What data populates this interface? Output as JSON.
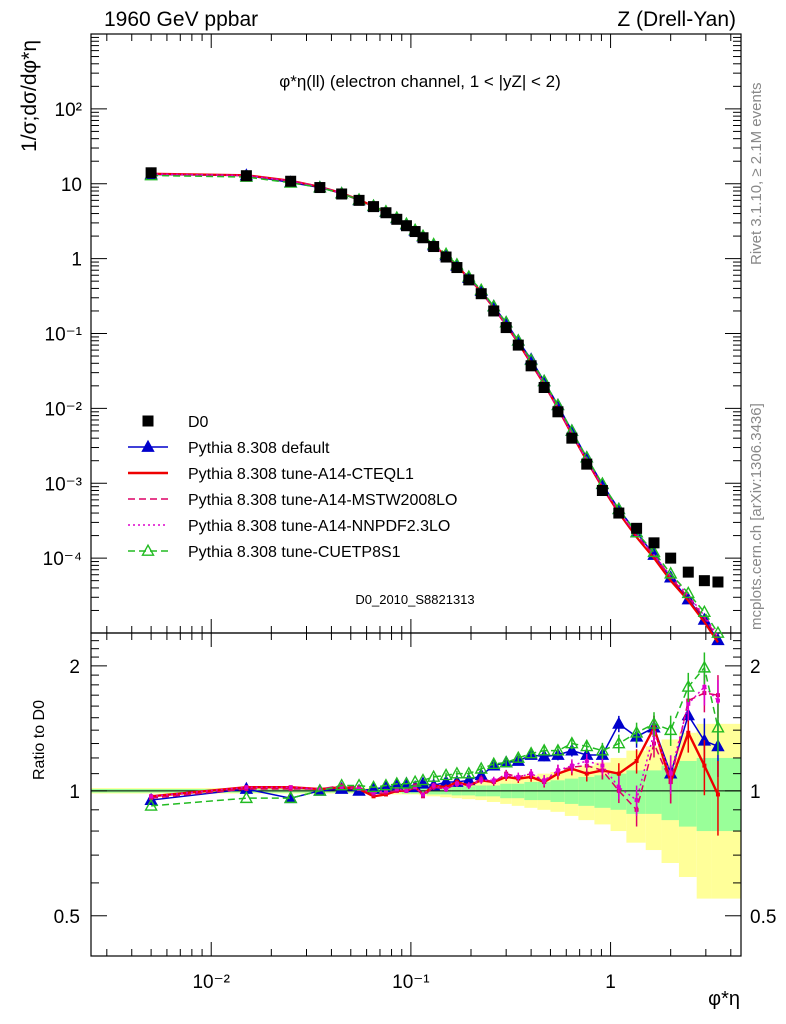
{
  "header": {
    "left": "1960 GeV ppbar",
    "right": "Z (Drell-Yan)"
  },
  "side_text": {
    "rivet": "Rivet 3.1.10, ≥ 2.1M events",
    "mcplots": "mcplots.cern.ch [arXiv:1306.3436]"
  },
  "chart_data": [
    {
      "type": "scatter",
      "title": "φ*η(ll) (electron channel, 1 < |yZ| < 2)",
      "ylabel": "1/σ;dσ/dφ*η",
      "xlabel": "φ*η",
      "x_scale": "log",
      "y_scale": "log",
      "xlim": [
        0.0025,
        4.5
      ],
      "ylim": [
        1e-05,
        1000
      ],
      "y_ticks": [
        "10⁻⁴",
        "10⁻³",
        "10⁻²",
        "10⁻¹",
        "1",
        "10",
        "10²"
      ],
      "watermark": "D0_2010_S8821313",
      "legend_position": "lower-left",
      "x": [
        0.005,
        0.015,
        0.025,
        0.035,
        0.045,
        0.055,
        0.065,
        0.075,
        0.085,
        0.095,
        0.105,
        0.115,
        0.13,
        0.15,
        0.17,
        0.195,
        0.225,
        0.26,
        0.3,
        0.345,
        0.4,
        0.465,
        0.545,
        0.64,
        0.76,
        0.91,
        1.1,
        1.35,
        1.65,
        2.0,
        2.45,
        2.95,
        3.45
      ],
      "series": [
        {
          "name": "D0",
          "color": "#000000",
          "marker": "square",
          "line": "none",
          "values": [
            14.0,
            12.8,
            10.8,
            8.9,
            7.3,
            6.0,
            4.95,
            4.1,
            3.35,
            2.75,
            2.3,
            1.9,
            1.45,
            1.05,
            0.76,
            0.52,
            0.34,
            0.2,
            0.12,
            0.07,
            0.037,
            0.019,
            0.009,
            0.004,
            0.0018,
            0.0008,
            0.0004,
            0.00025,
            0.00016,
            0.0001,
            6.5e-05,
            5e-05,
            4.8e-05
          ]
        },
        {
          "name": "Pythia 8.308 default",
          "color": "#0000cc",
          "marker": "triangle-filled",
          "line": "solid",
          "values": [
            13.3,
            12.9,
            10.4,
            8.9,
            7.4,
            6.0,
            5.0,
            4.2,
            3.45,
            2.85,
            2.35,
            1.97,
            1.5,
            1.1,
            0.8,
            0.55,
            0.37,
            0.23,
            0.14,
            0.08,
            0.045,
            0.023,
            0.011,
            0.005,
            0.0022,
            0.00097,
            0.00045,
            0.00022,
            0.00011,
            5.5e-05,
            2.8e-05,
            1.5e-05,
            8e-06
          ]
        },
        {
          "name": "Pythia 8.308 tune-A14-CTEQL1",
          "color": "#ee0000",
          "marker": "none",
          "line": "solid",
          "values": [
            13.6,
            13.0,
            11.0,
            9.1,
            7.5,
            6.1,
            5.0,
            4.15,
            3.4,
            2.8,
            2.35,
            1.95,
            1.5,
            1.1,
            0.8,
            0.55,
            0.36,
            0.22,
            0.13,
            0.075,
            0.04,
            0.021,
            0.01,
            0.0045,
            0.002,
            0.00088,
            0.0004,
            0.00019,
            0.0001,
            5e-05,
            2.7e-05,
            1.4e-05,
            7.5e-06
          ]
        },
        {
          "name": "Pythia 8.308 tune-A14-MSTW2008LO",
          "color": "#dd0066",
          "marker": "none",
          "line": "dashed",
          "values": [
            13.4,
            12.9,
            10.9,
            9.1,
            7.5,
            6.1,
            5.0,
            4.2,
            3.45,
            2.85,
            2.35,
            1.95,
            1.5,
            1.1,
            0.8,
            0.55,
            0.36,
            0.22,
            0.13,
            0.076,
            0.041,
            0.021,
            0.01,
            0.0046,
            0.002,
            0.0009,
            0.00041,
            0.0002,
            0.00011,
            5.5e-05,
            3e-05,
            1.6e-05,
            8.5e-06
          ]
        },
        {
          "name": "Pythia 8.308 tune-A14-NNPDF2.3LO",
          "color": "#dd00cc",
          "marker": "none",
          "line": "dotted",
          "values": [
            13.5,
            12.9,
            10.9,
            9.1,
            7.5,
            6.1,
            5.0,
            4.15,
            3.4,
            2.8,
            2.35,
            1.95,
            1.5,
            1.1,
            0.8,
            0.55,
            0.36,
            0.22,
            0.13,
            0.076,
            0.041,
            0.021,
            0.01,
            0.0046,
            0.002,
            0.00092,
            0.00042,
            0.00021,
            0.00011,
            5.8e-05,
            3.2e-05,
            1.7e-05,
            9e-06
          ]
        },
        {
          "name": "Pythia 8.308 tune-CUETP8S1",
          "color": "#22bb22",
          "marker": "triangle-open",
          "line": "dashed",
          "values": [
            12.9,
            12.3,
            10.3,
            8.9,
            7.4,
            6.1,
            5.05,
            4.25,
            3.5,
            2.9,
            2.4,
            2.0,
            1.55,
            1.15,
            0.83,
            0.57,
            0.38,
            0.23,
            0.14,
            0.08,
            0.044,
            0.023,
            0.011,
            0.005,
            0.0022,
            0.00098,
            0.00045,
            0.00022,
            0.00012,
            6.2e-05,
            3.4e-05,
            1.9e-05,
            1e-05
          ]
        }
      ]
    },
    {
      "type": "line",
      "ylabel": "Ratio to D0",
      "xlabel": "φ*η",
      "x_scale": "log",
      "xlim": [
        0.0025,
        4.5
      ],
      "ylim": [
        0.4,
        2.4
      ],
      "y_ticks": [
        0.5,
        1,
        2
      ],
      "x_ticks": [
        "10⁻²",
        "10⁻¹",
        "1"
      ],
      "x": [
        0.005,
        0.015,
        0.025,
        0.035,
        0.045,
        0.055,
        0.065,
        0.075,
        0.085,
        0.095,
        0.105,
        0.115,
        0.13,
        0.15,
        0.17,
        0.195,
        0.225,
        0.26,
        0.3,
        0.345,
        0.4,
        0.465,
        0.545,
        0.64,
        0.76,
        0.91,
        1.1,
        1.35,
        1.65,
        2.0,
        2.45,
        2.95,
        3.45
      ],
      "band_edges": [
        0.0025,
        0.01,
        0.02,
        0.03,
        0.04,
        0.05,
        0.06,
        0.07,
        0.08,
        0.09,
        0.1,
        0.11,
        0.12,
        0.14,
        0.16,
        0.18,
        0.21,
        0.24,
        0.28,
        0.32,
        0.37,
        0.43,
        0.5,
        0.59,
        0.69,
        0.83,
        1.0,
        1.2,
        1.5,
        1.8,
        2.2,
        2.7,
        3.2,
        4.5
      ],
      "band_inner": [
        0.01,
        0.01,
        0.01,
        0.01,
        0.01,
        0.01,
        0.01,
        0.01,
        0.01,
        0.015,
        0.015,
        0.015,
        0.02,
        0.02,
        0.025,
        0.025,
        0.03,
        0.03,
        0.04,
        0.04,
        0.05,
        0.05,
        0.06,
        0.07,
        0.08,
        0.09,
        0.1,
        0.12,
        0.12,
        0.15,
        0.18,
        0.2,
        0.2
      ],
      "band_outer": [
        0.015,
        0.015,
        0.015,
        0.015,
        0.015,
        0.015,
        0.015,
        0.015,
        0.02,
        0.02,
        0.02,
        0.025,
        0.03,
        0.035,
        0.04,
        0.045,
        0.05,
        0.06,
        0.07,
        0.08,
        0.09,
        0.1,
        0.11,
        0.13,
        0.15,
        0.17,
        0.2,
        0.25,
        0.28,
        0.33,
        0.38,
        0.45,
        0.45
      ],
      "series": [
        {
          "name": "Pythia 8.308 default",
          "color": "#0000cc",
          "values": [
            0.95,
            1.01,
            0.96,
            1.0,
            1.01,
            1.0,
            1.01,
            1.02,
            1.03,
            1.04,
            1.02,
            1.04,
            1.03,
            1.05,
            1.05,
            1.06,
            1.09,
            1.15,
            1.17,
            1.18,
            1.22,
            1.21,
            1.22,
            1.25,
            1.22,
            1.22,
            1.45,
            1.35,
            1.42,
            1.1,
            1.52,
            1.32,
            1.28
          ]
        },
        {
          "name": "Pythia 8.308 tune-A14-CTEQL1",
          "color": "#ee0000",
          "values": [
            0.97,
            1.02,
            1.02,
            1.01,
            1.02,
            1.01,
            0.97,
            0.98,
            1.0,
            1.0,
            1.02,
            0.98,
            1.03,
            1.02,
            1.05,
            1.03,
            1.06,
            1.05,
            1.08,
            1.07,
            1.08,
            1.05,
            1.1,
            1.13,
            1.1,
            1.12,
            1.1,
            1.18,
            1.42,
            1.05,
            1.38,
            1.15,
            0.98
          ]
        },
        {
          "name": "Pythia 8.308 tune-A14-MSTW2008LO",
          "color": "#dd0066",
          "values": [
            0.96,
            1.01,
            1.01,
            1.01,
            1.03,
            1.02,
            0.98,
            0.99,
            1.0,
            1.0,
            1.03,
            0.97,
            1.02,
            1.01,
            1.04,
            1.03,
            1.07,
            1.05,
            1.1,
            1.08,
            1.1,
            1.05,
            1.12,
            1.14,
            1.15,
            1.12,
            1.0,
            0.9,
            1.3,
            1.05,
            1.65,
            1.72,
            1.7
          ]
        },
        {
          "name": "Pythia 8.308 tune-A14-NNPDF2.3LO",
          "color": "#dd00cc",
          "values": [
            0.97,
            1.02,
            1.02,
            1.01,
            1.02,
            1.01,
            0.99,
            1.0,
            1.01,
            1.0,
            1.02,
            0.98,
            1.03,
            1.01,
            1.04,
            1.03,
            1.06,
            1.06,
            1.09,
            1.08,
            1.1,
            1.06,
            1.12,
            1.15,
            1.18,
            1.15,
            1.02,
            0.95,
            1.38,
            1.1,
            1.62,
            1.78,
            1.65
          ]
        },
        {
          "name": "Pythia 8.308 tune-CUETP8S1",
          "color": "#22bb22",
          "values": [
            0.92,
            0.96,
            0.96,
            1.0,
            1.03,
            1.03,
            1.02,
            1.03,
            1.04,
            1.04,
            1.05,
            1.06,
            1.08,
            1.09,
            1.1,
            1.1,
            1.13,
            1.16,
            1.17,
            1.2,
            1.23,
            1.25,
            1.25,
            1.3,
            1.28,
            1.25,
            1.3,
            1.38,
            1.45,
            1.4,
            1.78,
            1.98,
            1.42
          ]
        }
      ]
    }
  ]
}
